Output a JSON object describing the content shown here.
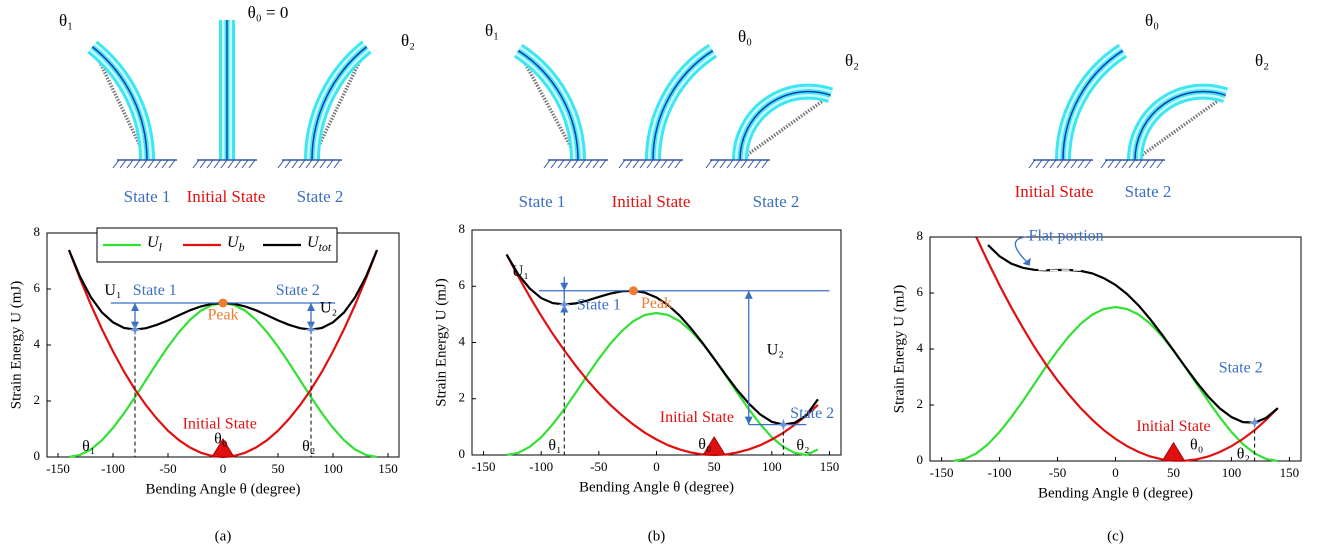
{
  "chart_data": [
    {
      "type": "line",
      "caption": "(a)",
      "diagram_labels": [
        "θ₁",
        "θ₀ = 0",
        "θ₂",
        "State 1",
        "Initial State",
        "State 2"
      ],
      "annotations": [
        "State 1",
        "State 2",
        "Peak",
        "Initial State",
        "θ₁",
        "θ₀",
        "θ₂",
        "U₁",
        "U₂"
      ],
      "xlabel": "Bending Angle θ (degree)",
      "ylabel": "Strain Energy U (mJ)",
      "x": [
        -140,
        -130,
        -120,
        -110,
        -100,
        -90,
        -80,
        -70,
        -60,
        -50,
        -40,
        -30,
        -20,
        -10,
        0,
        10,
        20,
        30,
        40,
        50,
        60,
        70,
        80,
        90,
        100,
        110,
        120,
        130,
        140
      ],
      "series": [
        {
          "name": "U",
          "subscript": "l",
          "color": "#33e033",
          "values": [
            0,
            0.07,
            0.27,
            0.6,
            1.04,
            1.56,
            2.14,
            2.75,
            3.36,
            3.94,
            4.46,
            4.9,
            5.23,
            5.43,
            5.5,
            5.43,
            5.23,
            4.9,
            4.46,
            3.94,
            3.36,
            2.75,
            2.14,
            1.56,
            1.04,
            0.6,
            0.27,
            0.07,
            0
          ]
        },
        {
          "name": "U",
          "subscript": "b",
          "color": "#e01010",
          "values": [
            7.39,
            6.37,
            5.43,
            4.56,
            3.77,
            3.05,
            2.41,
            1.85,
            1.36,
            0.94,
            0.6,
            0.34,
            0.15,
            0.04,
            0,
            0.04,
            0.15,
            0.34,
            0.6,
            0.94,
            1.36,
            1.85,
            2.41,
            3.05,
            3.77,
            4.56,
            5.43,
            6.37,
            7.39
          ]
        },
        {
          "name": "U",
          "subscript": "tot",
          "color": "#000000",
          "values": [
            7.39,
            6.44,
            5.7,
            5.16,
            4.81,
            4.61,
            4.55,
            4.6,
            4.72,
            4.88,
            5.06,
            5.24,
            5.38,
            5.47,
            5.5,
            5.47,
            5.38,
            5.24,
            5.06,
            4.88,
            4.72,
            4.6,
            4.55,
            4.61,
            4.81,
            5.16,
            5.7,
            6.44,
            7.39
          ]
        }
      ],
      "legend": "top",
      "xlim": [
        -160,
        160
      ],
      "xticks": [
        -150,
        -100,
        -50,
        0,
        50,
        100,
        150
      ],
      "ylim": [
        0,
        8
      ],
      "yticks": [
        0,
        2,
        4,
        6,
        8
      ]
    },
    {
      "type": "line",
      "caption": "(b)",
      "diagram_labels": [
        "θ₁",
        "θ₀",
        "θ₂",
        "State 1",
        "Initial State",
        "State 2"
      ],
      "annotations": [
        "U₁",
        "State 1",
        "Peak",
        "U₂",
        "Initial State",
        "State 2",
        "θ₁",
        "θ₀",
        "θ₂"
      ],
      "xlabel": "Bending Angle θ (degree)",
      "ylabel": "Strain Energy U (mJ)",
      "x": [
        -130,
        -120,
        -110,
        -100,
        -90,
        -80,
        -70,
        -60,
        -50,
        -40,
        -30,
        -20,
        -10,
        0,
        10,
        20,
        30,
        40,
        50,
        60,
        70,
        80,
        90,
        100,
        110,
        120,
        130,
        140
      ],
      "series": [
        {
          "color": "#33e033",
          "values": [
            0,
            0.07,
            0.29,
            0.63,
            1.09,
            1.63,
            2.22,
            2.83,
            3.42,
            3.96,
            4.41,
            4.76,
            4.98,
            5.05,
            4.98,
            4.76,
            4.41,
            3.96,
            3.42,
            2.83,
            2.22,
            1.63,
            1.09,
            0.63,
            0.29,
            0.07,
            0,
            0.2
          ]
        },
        {
          "color": "#e01010",
          "values": [
            7.13,
            6.36,
            5.63,
            4.95,
            4.31,
            3.72,
            3.17,
            2.66,
            2.2,
            1.78,
            1.41,
            1.08,
            0.79,
            0.55,
            0.35,
            0.2,
            0.09,
            0.02,
            0,
            0.02,
            0.09,
            0.2,
            0.35,
            0.55,
            0.79,
            1.08,
            1.41,
            1.78
          ]
        },
        {
          "color": "#000000",
          "values": [
            7.13,
            6.43,
            5.92,
            5.58,
            5.4,
            5.35,
            5.39,
            5.49,
            5.62,
            5.74,
            5.82,
            5.84,
            5.77,
            5.6,
            5.33,
            4.96,
            4.5,
            3.98,
            3.42,
            2.85,
            2.31,
            1.83,
            1.44,
            1.18,
            1.08,
            1.15,
            1.41,
            1.98
          ]
        }
      ],
      "xlim": [
        -160,
        160
      ],
      "xticks": [
        -150,
        -100,
        -50,
        0,
        50,
        100,
        150
      ],
      "ylim": [
        0,
        8
      ],
      "yticks": [
        0,
        2,
        4,
        6,
        8
      ]
    },
    {
      "type": "line",
      "caption": "(c)",
      "diagram_labels": [
        "θ₀",
        "θ₂",
        "Initial State",
        "State 2"
      ],
      "annotations": [
        "Flat portion",
        "State 2",
        "Initial State",
        "θ₀",
        "θ₂"
      ],
      "xlabel": "Bending Angle θ (degree)",
      "ylabel": "Strain Energy U (mJ)",
      "x": [
        -140,
        -130,
        -120,
        -110,
        -100,
        -90,
        -80,
        -70,
        -60,
        -50,
        -40,
        -30,
        -20,
        -10,
        0,
        10,
        20,
        30,
        40,
        50,
        60,
        70,
        80,
        90,
        100,
        110,
        120,
        130,
        140
      ],
      "series": [
        {
          "color": "#33e033",
          "values": [
            0,
            0.07,
            0.27,
            0.6,
            1.04,
            1.56,
            2.14,
            2.75,
            3.36,
            3.94,
            4.46,
            4.9,
            5.23,
            5.43,
            5.5,
            5.43,
            5.23,
            4.9,
            4.46,
            3.94,
            3.36,
            2.75,
            2.14,
            1.56,
            1.04,
            0.6,
            0.27,
            0.07,
            0
          ]
        },
        {
          "color": "#e01010",
          "values": [
            null,
            null,
            7.99,
            7.11,
            6.27,
            5.49,
            4.76,
            4.08,
            3.45,
            2.88,
            2.36,
            1.89,
            1.47,
            1.1,
            0.79,
            0.53,
            0.32,
            0.16,
            0.06,
            0.01,
            0.01,
            0.06,
            0.16,
            0.32,
            0.53,
            0.79,
            1.1,
            1.47,
            1.89
          ]
        },
        {
          "color": "#000000",
          "values": [
            null,
            null,
            null,
            7.71,
            7.31,
            7.05,
            6.9,
            6.83,
            6.81,
            6.82,
            6.82,
            6.79,
            6.7,
            6.53,
            6.29,
            5.96,
            5.55,
            5.06,
            4.52,
            3.95,
            3.37,
            2.81,
            2.3,
            1.88,
            1.57,
            1.39,
            1.37,
            1.54,
            1.89
          ]
        }
      ],
      "xlim": [
        -160,
        160
      ],
      "xticks": [
        -150,
        -100,
        -50,
        0,
        50,
        100,
        150
      ],
      "ylim": [
        0,
        8
      ],
      "yticks": [
        0,
        2,
        4,
        6,
        8
      ]
    }
  ]
}
